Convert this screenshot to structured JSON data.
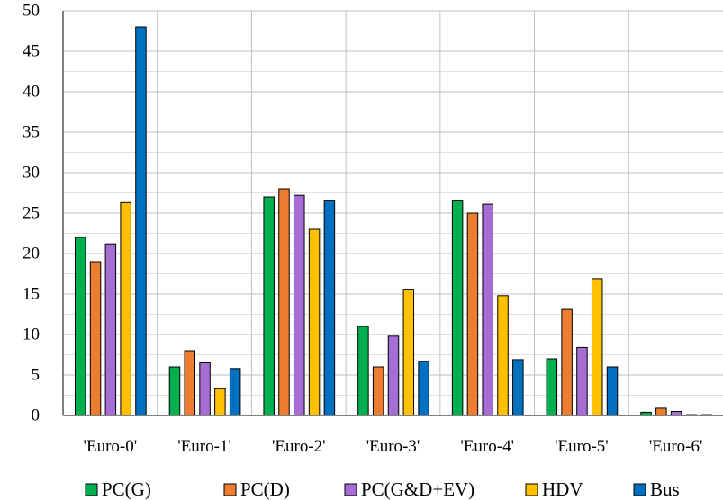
{
  "chart_data": {
    "type": "bar",
    "title": "",
    "xlabel": "",
    "ylabel": "",
    "categories": [
      "'Euro-0'",
      "'Euro-1'",
      "'Euro-2'",
      "'Euro-3'",
      "'Euro-4'",
      "'Euro-5'",
      "'Euro-6'"
    ],
    "ylim": [
      0,
      50
    ],
    "yticks": [
      "0",
      "5",
      "10",
      "15",
      "20",
      "25",
      "30",
      "35",
      "40",
      "45",
      "50"
    ],
    "grid": true,
    "legend_position": "bottom",
    "series": [
      {
        "name": "PC(G)",
        "color": "#00B050",
        "values": [
          22.0,
          6.0,
          27.0,
          11.0,
          26.6,
          7.0,
          0.4
        ]
      },
      {
        "name": "PC(D)",
        "color": "#ED7D31",
        "values": [
          19.0,
          8.0,
          28.0,
          6.0,
          25.0,
          13.1,
          0.9
        ]
      },
      {
        "name": "PC(G&D+EV)",
        "color": "#A66DD4",
        "values": [
          21.2,
          6.5,
          27.2,
          9.8,
          26.1,
          8.4,
          0.5
        ]
      },
      {
        "name": "HDV",
        "color": "#FFC000",
        "values": [
          26.3,
          3.3,
          23.0,
          15.6,
          14.8,
          16.9,
          0.1
        ]
      },
      {
        "name": "Bus",
        "color": "#0070C0",
        "values": [
          48.0,
          5.8,
          26.6,
          6.7,
          6.9,
          6.0,
          0.1
        ]
      }
    ]
  }
}
